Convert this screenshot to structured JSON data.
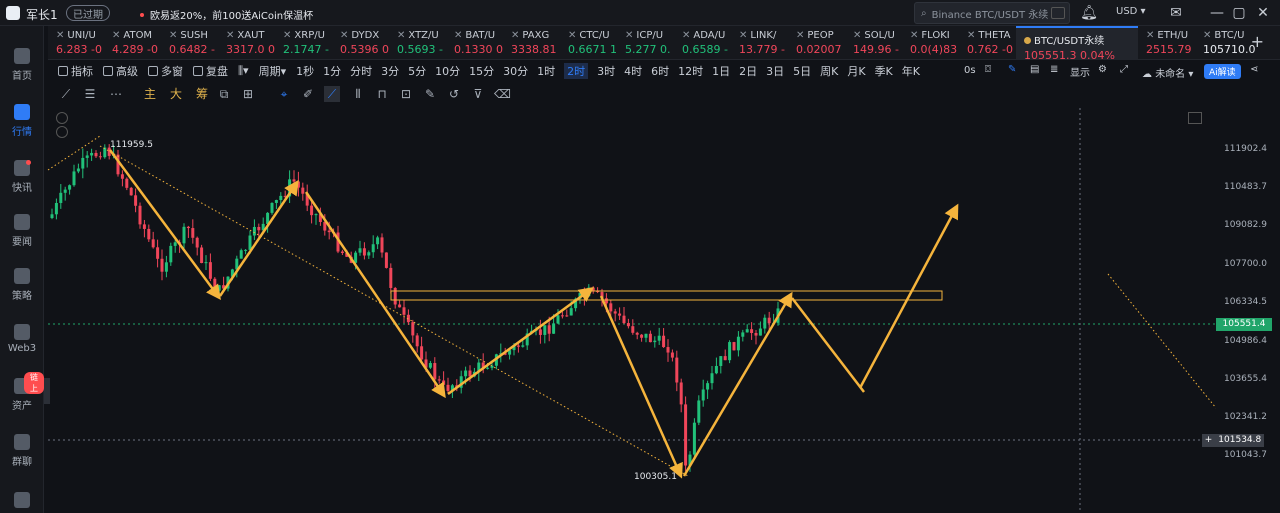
{
  "titlebar": {
    "account": "军长1",
    "expired_label": "已过期",
    "news_text": "欧易返20%，前100送AiCoin保温杯",
    "search_placeholder": "Binance BTC/USDT 永续",
    "currency": "USD"
  },
  "sidebar": {
    "items": [
      {
        "label": "首页",
        "icon": "home-icon"
      },
      {
        "label": "行情",
        "icon": "market-icon"
      },
      {
        "label": "快讯",
        "icon": "flash-news-icon"
      },
      {
        "label": "要闻",
        "icon": "headline-icon"
      },
      {
        "label": "策略",
        "icon": "strategy-icon"
      },
      {
        "label": "Web3",
        "icon": "web3-icon"
      },
      {
        "label": "资产",
        "icon": "asset-icon"
      },
      {
        "label": "群聊",
        "icon": "chat-icon"
      }
    ],
    "asset_badge": "链上"
  },
  "tickers": [
    {
      "name": "UNI/U",
      "price": "6.283 -0",
      "trend": "down"
    },
    {
      "name": "ATOM",
      "price": "4.289 -0",
      "trend": "down"
    },
    {
      "name": "SUSH",
      "price": "0.6482 -",
      "trend": "down"
    },
    {
      "name": "XAUT",
      "price": "3317.0 0",
      "trend": "down"
    },
    {
      "name": "XRP/U",
      "price": "2.1747 -",
      "trend": "up"
    },
    {
      "name": "DYDX",
      "price": "0.5396 0",
      "trend": "down"
    },
    {
      "name": "XTZ/U",
      "price": "0.5693 -",
      "trend": "up"
    },
    {
      "name": "BAT/U",
      "price": "0.1330 0",
      "trend": "down"
    },
    {
      "name": "PAXG",
      "price": "3338.81",
      "trend": "down"
    },
    {
      "name": "CTC/U",
      "price": "0.6671 1",
      "trend": "up"
    },
    {
      "name": "ICP/U",
      "price": "5.277 0.",
      "trend": "up"
    },
    {
      "name": "ADA/U",
      "price": "0.6589 -",
      "trend": "up"
    },
    {
      "name": "LINK/",
      "price": "13.779 -",
      "trend": "down"
    },
    {
      "name": "PEOP",
      "price": "0.02007",
      "trend": "down"
    },
    {
      "name": "SOL/U",
      "price": "149.96 -",
      "trend": "down"
    },
    {
      "name": "FLOKI",
      "price": "0.0(4)83",
      "trend": "down"
    },
    {
      "name": "THETA",
      "price": "0.762 -0",
      "trend": "down"
    },
    {
      "name": "BTC/USDT永续",
      "price": "105551.3 0.04%",
      "trend": "down",
      "active": true
    },
    {
      "name": "ETH/U",
      "price": "2515.79",
      "trend": "down"
    },
    {
      "name": "BTC/U",
      "price": "105710.0",
      "trend": "neutral"
    }
  ],
  "periodbar": {
    "indicator": "指标",
    "advanced": "高级",
    "multi_window": "多窗",
    "replay": "复盘",
    "period": "周期",
    "periods": [
      "1秒",
      "1分",
      "分时",
      "3分",
      "5分",
      "10分",
      "15分",
      "30分",
      "1时",
      "2时",
      "3时",
      "4时",
      "6时",
      "12时",
      "1日",
      "2日",
      "3日",
      "5日",
      "周K",
      "月K",
      "季K",
      "年K"
    ],
    "selected_period": "2时",
    "countdown": "0s",
    "display": "显示",
    "unnamed": "未命名",
    "ai_button": "Ai解读"
  },
  "toolsbar": {
    "main_label": "主",
    "big_label": "大",
    "chip_label": "筹"
  },
  "chart": {
    "y_ticks": [
      "111902.4",
      "110483.7",
      "109082.9",
      "107700.0",
      "106334.5",
      "104986.4",
      "103655.4",
      "102341.2",
      "101043.7"
    ],
    "current_price": "105551.4",
    "crosshair_price": "101534.8",
    "high_label": "111959.5",
    "low_label": "100305.1"
  },
  "colors": {
    "up": "#21c17a",
    "down": "#f0465a",
    "accent": "#2f7cf6",
    "drawing": "#f5b43c"
  }
}
